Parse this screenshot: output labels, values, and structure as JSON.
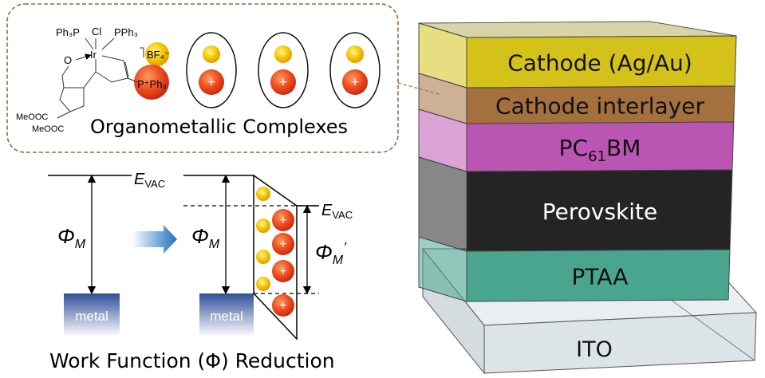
{
  "complex_panel": {
    "title": "Organometallic Complexes",
    "structure": {
      "ph3p": "Ph₃P",
      "cl": "Cl",
      "pph3_top": "PPh₃",
      "ir": "Ir",
      "o": "O",
      "bf4": "BF₄⁻",
      "pph3_plus": "P⁺Ph₃",
      "meooc1": "MeOOC",
      "meooc2": "MeOOC"
    },
    "ion_pairs": [
      {
        "anion": "−",
        "cation": "+"
      },
      {
        "anion": "−",
        "cation": "+"
      },
      {
        "anion": "−",
        "cation": "+"
      }
    ],
    "colors": {
      "border": "#9a6a3a",
      "anion": "#f5c400",
      "cation": "#e8401a"
    }
  },
  "energy_diagram": {
    "title": "Work Function (Φ) Reduction",
    "evac_left": "E",
    "evac_left_sub": "VAC",
    "evac_right": "E",
    "evac_right_sub": "VAC",
    "phi_left": "Φ",
    "phi_left_sub": "M",
    "phi_mid": "Φ",
    "phi_mid_sub": "M",
    "phi_right": "Φ",
    "phi_right_sub": "M",
    "phi_right_prime": "’",
    "metal_left": "metal",
    "metal_right": "metal",
    "minus": "−",
    "plus": "+",
    "colors": {
      "metal": "#3a5ea8",
      "arrow": "#1f6fc0"
    }
  },
  "device_stack": {
    "layers": [
      {
        "label": "Cathode (Ag/Au)",
        "color": "#d4c21a"
      },
      {
        "label": "Cathode interlayer",
        "color": "#a4703e"
      },
      {
        "label": "PC",
        "sub": "61",
        "label_end": "BM",
        "color": "#bb55b3"
      },
      {
        "label": "Perovskite",
        "color": "#242424"
      },
      {
        "label": "PTAA",
        "color": "#4aa58e"
      },
      {
        "label": "ITO",
        "color": "#dde4e8"
      }
    ]
  }
}
